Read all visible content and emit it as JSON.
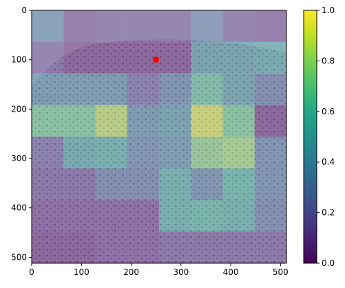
{
  "chart_data": {
    "type": "heatmap",
    "title": "",
    "xlabel": "",
    "ylabel": "",
    "xlim": [
      0,
      512
    ],
    "ylim": [
      512,
      0
    ],
    "grid": false,
    "x_ticks": [
      0,
      100,
      200,
      300,
      400,
      500
    ],
    "y_ticks": [
      0,
      100,
      200,
      300,
      400,
      500
    ],
    "x_tick_labels": [
      "0",
      "100",
      "200",
      "300",
      "400",
      "500"
    ],
    "y_tick_labels": [
      "0",
      "100",
      "200",
      "300",
      "400",
      "500"
    ],
    "cell_size": 64,
    "cells": [
      [
        0.35,
        0.1,
        0.15,
        0.15,
        0.15,
        0.3,
        0.15,
        0.1
      ],
      [
        0.15,
        0.05,
        0.05,
        0.05,
        0.05,
        0.45,
        0.45,
        0.5
      ],
      [
        0.4,
        0.4,
        0.4,
        0.2,
        0.35,
        0.65,
        0.45,
        0.3
      ],
      [
        0.7,
        0.7,
        0.85,
        0.4,
        0.45,
        0.9,
        0.7,
        0.05
      ],
      [
        0.2,
        0.5,
        0.55,
        0.35,
        0.4,
        0.75,
        0.8,
        0.35
      ],
      [
        0.15,
        0.15,
        0.3,
        0.3,
        0.55,
        0.35,
        0.6,
        0.35
      ],
      [
        0.1,
        0.1,
        0.1,
        0.1,
        0.55,
        0.6,
        0.55,
        0.3
      ],
      [
        0.05,
        0.05,
        0.1,
        0.1,
        0.15,
        0.15,
        0.15,
        0.15
      ]
    ],
    "marker": {
      "x": 250,
      "y": 100,
      "color": "#ff0000"
    },
    "colorbar": {
      "range": [
        0,
        1
      ],
      "ticks": [
        0.0,
        0.2,
        0.4,
        0.6,
        0.8,
        1.0
      ],
      "tick_labels": [
        "0.0",
        "0.2",
        "0.4",
        "0.6",
        "0.8",
        "1.0"
      ],
      "colormap": "viridis"
    }
  }
}
